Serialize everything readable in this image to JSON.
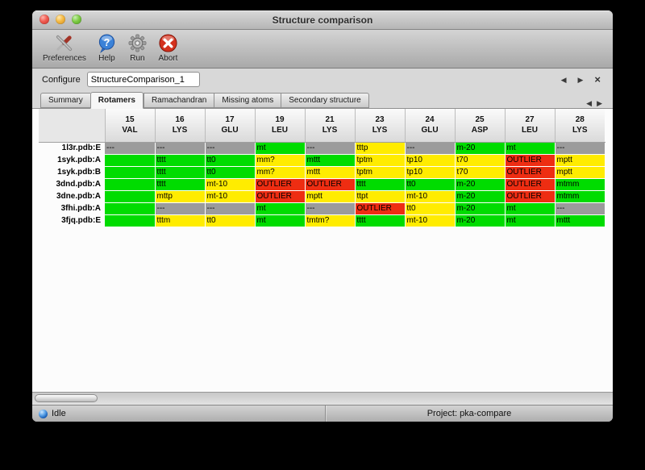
{
  "window": {
    "title": "Structure comparison"
  },
  "toolbar": {
    "preferences_label": "Preferences",
    "help_label": "Help",
    "run_label": "Run",
    "abort_label": "Abort"
  },
  "configure": {
    "label": "Configure",
    "value": "StructureComparison_1"
  },
  "tabs": {
    "items": [
      "Summary",
      "Rotamers",
      "Ramachandran",
      "Missing atoms",
      "Secondary structure"
    ],
    "active": "Rotamers"
  },
  "colors": {
    "ok": "#00dc00",
    "warn": "#ffec00",
    "missing": "#9b9b9b",
    "outlier": "#ee2d12"
  },
  "table": {
    "columns": [
      {
        "num": "15",
        "res": "VAL"
      },
      {
        "num": "16",
        "res": "LYS"
      },
      {
        "num": "17",
        "res": "GLU"
      },
      {
        "num": "19",
        "res": "LEU"
      },
      {
        "num": "21",
        "res": "LYS"
      },
      {
        "num": "23",
        "res": "LYS"
      },
      {
        "num": "24",
        "res": "GLU"
      },
      {
        "num": "25",
        "res": "ASP"
      },
      {
        "num": "27",
        "res": "LEU"
      },
      {
        "num": "28",
        "res": "LYS"
      }
    ],
    "rows": [
      {
        "label": "1l3r.pdb:E",
        "cells": [
          {
            "t": "---",
            "s": "missing"
          },
          {
            "t": "---",
            "s": "missing"
          },
          {
            "t": "---",
            "s": "missing"
          },
          {
            "t": "mt",
            "s": "ok"
          },
          {
            "t": "---",
            "s": "missing"
          },
          {
            "t": "tttp",
            "s": "warn"
          },
          {
            "t": "---",
            "s": "missing"
          },
          {
            "t": "m-20",
            "s": "ok"
          },
          {
            "t": "mt",
            "s": "ok"
          },
          {
            "t": "---",
            "s": "missing"
          }
        ]
      },
      {
        "label": "1syk.pdb:A",
        "cells": [
          {
            "t": "",
            "s": "ok"
          },
          {
            "t": "tttt",
            "s": "ok"
          },
          {
            "t": "tt0",
            "s": "ok"
          },
          {
            "t": "mm?",
            "s": "warn"
          },
          {
            "t": "mttt",
            "s": "ok"
          },
          {
            "t": "tptm",
            "s": "warn"
          },
          {
            "t": "tp10",
            "s": "warn"
          },
          {
            "t": "t70",
            "s": "warn"
          },
          {
            "t": "OUTLIER",
            "s": "outlier"
          },
          {
            "t": "mptt",
            "s": "warn"
          }
        ]
      },
      {
        "label": "1syk.pdb:B",
        "cells": [
          {
            "t": "",
            "s": "ok"
          },
          {
            "t": "tttt",
            "s": "ok"
          },
          {
            "t": "tt0",
            "s": "ok"
          },
          {
            "t": "mm?",
            "s": "warn"
          },
          {
            "t": "mttt",
            "s": "warn"
          },
          {
            "t": "tptm",
            "s": "warn"
          },
          {
            "t": "tp10",
            "s": "warn"
          },
          {
            "t": "t70",
            "s": "warn"
          },
          {
            "t": "OUTLIER",
            "s": "outlier"
          },
          {
            "t": "mptt",
            "s": "warn"
          }
        ]
      },
      {
        "label": "3dnd.pdb:A",
        "cells": [
          {
            "t": "",
            "s": "ok"
          },
          {
            "t": "tttt",
            "s": "ok"
          },
          {
            "t": "mt-10",
            "s": "warn"
          },
          {
            "t": "OUTLIER",
            "s": "outlier"
          },
          {
            "t": "OUTLIER",
            "s": "outlier"
          },
          {
            "t": "tttt",
            "s": "ok"
          },
          {
            "t": "tt0",
            "s": "ok"
          },
          {
            "t": "m-20",
            "s": "ok"
          },
          {
            "t": "OUTLIER",
            "s": "outlier"
          },
          {
            "t": "mtmm",
            "s": "ok"
          }
        ]
      },
      {
        "label": "3dne.pdb:A",
        "cells": [
          {
            "t": "",
            "s": "ok"
          },
          {
            "t": "mttp",
            "s": "warn"
          },
          {
            "t": "mt-10",
            "s": "warn"
          },
          {
            "t": "OUTLIER",
            "s": "outlier"
          },
          {
            "t": "mptt",
            "s": "warn"
          },
          {
            "t": "ttpt",
            "s": "warn"
          },
          {
            "t": "mt-10",
            "s": "warn"
          },
          {
            "t": "m-20",
            "s": "ok"
          },
          {
            "t": "OUTLIER",
            "s": "outlier"
          },
          {
            "t": "mtmm",
            "s": "ok"
          }
        ]
      },
      {
        "label": "3fhi.pdb:A",
        "cells": [
          {
            "t": "",
            "s": "ok"
          },
          {
            "t": "---",
            "s": "missing"
          },
          {
            "t": "---",
            "s": "missing"
          },
          {
            "t": "mt",
            "s": "ok"
          },
          {
            "t": "---",
            "s": "missing"
          },
          {
            "t": "OUTLIER",
            "s": "outlier"
          },
          {
            "t": "tt0",
            "s": "warn"
          },
          {
            "t": "m-20",
            "s": "ok"
          },
          {
            "t": "mt",
            "s": "ok"
          },
          {
            "t": "---",
            "s": "missing"
          }
        ]
      },
      {
        "label": "3fjq.pdb:E",
        "cells": [
          {
            "t": "",
            "s": "ok"
          },
          {
            "t": "tttm",
            "s": "warn"
          },
          {
            "t": "tt0",
            "s": "warn"
          },
          {
            "t": "mt",
            "s": "ok"
          },
          {
            "t": "tmtm?",
            "s": "warn"
          },
          {
            "t": "tttt",
            "s": "ok"
          },
          {
            "t": "mt-10",
            "s": "warn"
          },
          {
            "t": "m-20",
            "s": "ok"
          },
          {
            "t": "mt",
            "s": "ok"
          },
          {
            "t": "mttt",
            "s": "ok"
          }
        ]
      }
    ]
  },
  "status": {
    "state": "Idle",
    "project": "Project: pka-compare"
  },
  "nav": {
    "prev": "◀",
    "next": "▶",
    "close": "×"
  }
}
